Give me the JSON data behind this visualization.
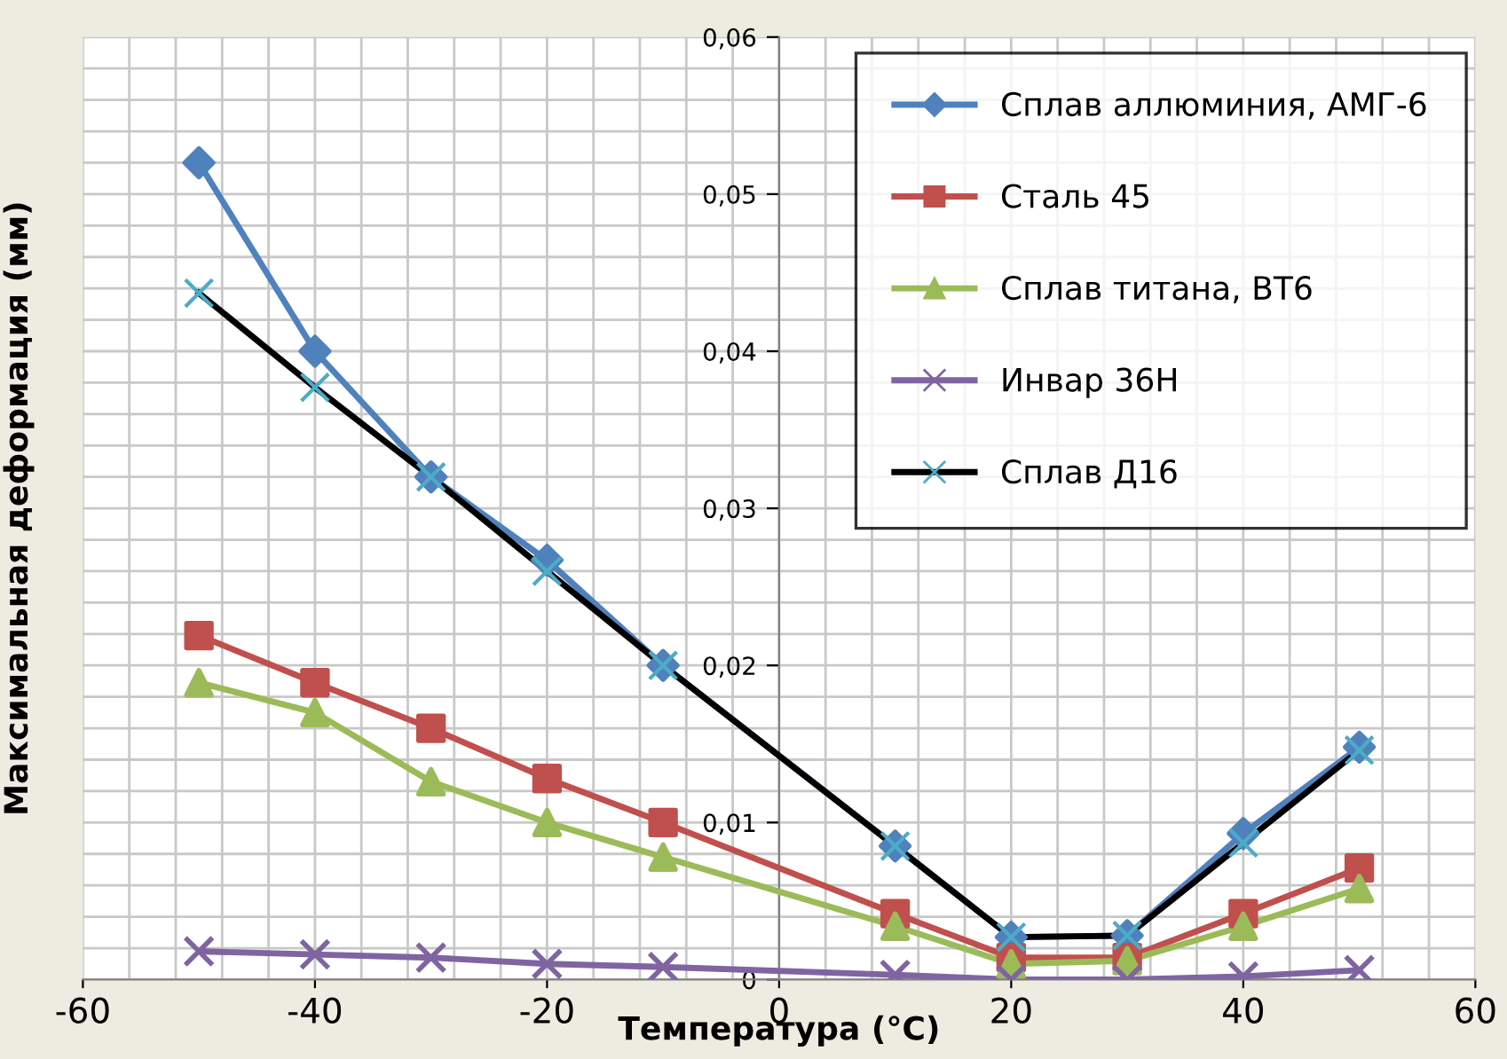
{
  "chart_data": {
    "type": "line",
    "xlabel": "Температура (°C)",
    "ylabel": "Максимальная деформация (мм)",
    "x": [
      -50,
      -40,
      -30,
      -20,
      -10,
      10,
      20,
      30,
      40,
      50
    ],
    "series": [
      {
        "name": "Сплав аллюминия, АМГ-6",
        "color": "#4f81bd",
        "marker": "diamond",
        "values": [
          0.052,
          0.04,
          0.032,
          0.0267,
          0.02,
          0.0085,
          0.0027,
          0.0028,
          0.0093,
          0.0148
        ]
      },
      {
        "name": "Сталь 45",
        "color": "#c0504d",
        "marker": "square",
        "values": [
          0.0219,
          0.0189,
          0.016,
          0.0128,
          0.01,
          0.0042,
          0.0014,
          0.0014,
          0.0042,
          0.0071
        ]
      },
      {
        "name": "Сплав титана, ВТ6",
        "color": "#9bbb59",
        "marker": "triangle",
        "values": [
          0.0189,
          0.017,
          0.0126,
          0.01,
          0.0078,
          0.0034,
          0.001,
          0.0012,
          0.0034,
          0.0058
        ]
      },
      {
        "name": "Инвар 36Н",
        "color": "#8064a2",
        "marker": "cross",
        "values": [
          0.0018,
          0.0016,
          0.0014,
          0.001,
          0.0008,
          0.0003,
          0.0,
          0.0,
          0.0002,
          0.0006
        ]
      },
      {
        "name": "Сплав Д16",
        "color": "#000000",
        "marker": "cross",
        "colors": [
          "#4bacc6",
          "#4bacc6",
          "#4bacc6",
          "#4bacc6",
          "#4bacc6",
          "#4bacc6",
          "#4bacc6",
          "#4bacc6",
          "#4bacc6",
          "#4bacc6"
        ],
        "values": [
          0.0437,
          0.0377,
          0.032,
          0.026,
          0.02,
          0.0085,
          0.0027,
          0.0028,
          0.0087,
          0.0146
        ]
      }
    ],
    "xlim": [
      -60,
      60
    ],
    "xticks": [
      -60,
      -40,
      -20,
      0,
      20,
      40,
      60
    ],
    "ylim": [
      0,
      0.06
    ],
    "yticks": [
      0,
      {
        "value": 0.01,
        "label": "0,01"
      },
      {
        "value": 0.02,
        "label": "0,02"
      },
      {
        "value": 0.03,
        "label": "0,03"
      },
      {
        "value": 0.04,
        "label": "0,04"
      },
      {
        "value": 0.05,
        "label": "0,05"
      },
      {
        "value": 0.06,
        "label": "0,06"
      }
    ],
    "grid": true,
    "legend": "top right",
    "line_style": "solid"
  }
}
